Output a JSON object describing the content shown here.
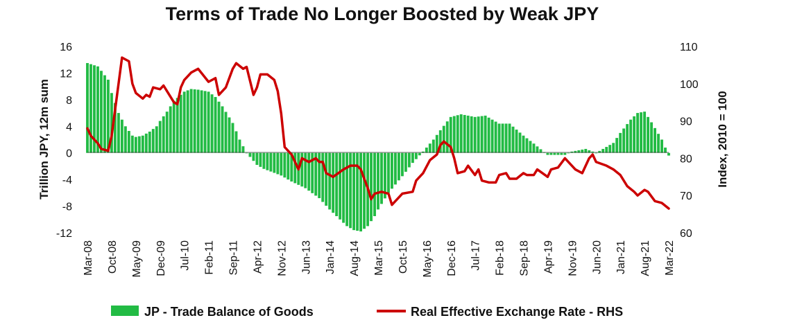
{
  "chart_data": {
    "type": "bar+line",
    "title": "Terms of Trade No Longer Boosted by Weak JPY",
    "ylabel_left": "Trillion JPY, 12m sum",
    "ylabel_right": "Index, 2010 = 100",
    "ylim_left": [
      -12,
      16
    ],
    "ylim_right": [
      60,
      110
    ],
    "yticks_left": [
      "16",
      "12",
      "8",
      "4",
      "0",
      "-4",
      "-8",
      "-12"
    ],
    "yticks_right": [
      "110",
      "100",
      "90",
      "80",
      "70",
      "60"
    ],
    "x_tick_labels": [
      "Mar-08",
      "Oct-08",
      "May-09",
      "Dec-09",
      "Jul-10",
      "Feb-11",
      "Sep-11",
      "Apr-12",
      "Nov-12",
      "Jun-13",
      "Jan-14",
      "Aug-14",
      "Mar-15",
      "Oct-15",
      "May-16",
      "Dec-16",
      "Jul-17",
      "Feb-18",
      "Sep-18",
      "Apr-19",
      "Nov-19",
      "Jun-20",
      "Jan-21",
      "Aug-21",
      "Mar-22"
    ],
    "x_start": "Mar-08",
    "x_end": "Mar-22",
    "grid": false,
    "legend_position": "bottom",
    "series": [
      {
        "name": "JP - Trade Balance of Goods",
        "type": "bar",
        "axis": "left",
        "color": "#22bb44",
        "points": [
          [
            "Mar-08",
            13.5
          ],
          [
            "Jun-08",
            13
          ],
          [
            "Sep-08",
            11
          ],
          [
            "Oct-08",
            9
          ],
          [
            "Dec-08",
            6
          ],
          [
            "Feb-09",
            4
          ],
          [
            "Apr-09",
            2.6
          ],
          [
            "May-09",
            2.4
          ],
          [
            "Jul-09",
            2.6
          ],
          [
            "Sep-09",
            3.2
          ],
          [
            "Nov-09",
            4
          ],
          [
            "Dec-09",
            4.8
          ],
          [
            "Feb-10",
            6.2
          ],
          [
            "Apr-10",
            7.8
          ],
          [
            "Jul-10",
            9.2
          ],
          [
            "Sep-10",
            9.6
          ],
          [
            "Nov-10",
            9.5
          ],
          [
            "Feb-11",
            9.2
          ],
          [
            "Apr-11",
            8.4
          ],
          [
            "Jun-11",
            7
          ],
          [
            "Sep-11",
            4.5
          ],
          [
            "Nov-11",
            2
          ],
          [
            "Jan-12",
            0
          ],
          [
            "Apr-12",
            -1.8
          ],
          [
            "Jun-12",
            -2.4
          ],
          [
            "Nov-12",
            -3.4
          ],
          [
            "Feb-13",
            -4.3
          ],
          [
            "Jun-13",
            -5.3
          ],
          [
            "Oct-13",
            -6.8
          ],
          [
            "Jan-14",
            -8.5
          ],
          [
            "Apr-14",
            -10
          ],
          [
            "Jun-14",
            -11
          ],
          [
            "Aug-14",
            -11.6
          ],
          [
            "Oct-14",
            -11.8
          ],
          [
            "Dec-14",
            -11
          ],
          [
            "Feb-15",
            -9.5
          ],
          [
            "Mar-15",
            -8.5
          ],
          [
            "Jun-15",
            -6
          ],
          [
            "Oct-15",
            -3.5
          ],
          [
            "Jan-16",
            -1.5
          ],
          [
            "Apr-16",
            0.2
          ],
          [
            "Jul-16",
            2
          ],
          [
            "Sep-16",
            3.4
          ],
          [
            "Dec-16",
            5.4
          ],
          [
            "Mar-17",
            5.8
          ],
          [
            "Jul-17",
            5.4
          ],
          [
            "Oct-17",
            5.6
          ],
          [
            "Feb-18",
            4.4
          ],
          [
            "May-18",
            4.4
          ],
          [
            "Sep-18",
            2.6
          ],
          [
            "Dec-18",
            1.4
          ],
          [
            "Apr-19",
            -0.3
          ],
          [
            "Sep-19",
            -0.3
          ],
          [
            "Nov-19",
            0.2
          ],
          [
            "Mar-20",
            0.6
          ],
          [
            "Jun-20",
            0
          ],
          [
            "Aug-20",
            0.6
          ],
          [
            "Nov-20",
            1.5
          ],
          [
            "Jan-21",
            3
          ],
          [
            "Apr-21",
            5
          ],
          [
            "Jun-21",
            6
          ],
          [
            "Aug-21",
            6.2
          ],
          [
            "Oct-21",
            4.6
          ],
          [
            "Jan-22",
            2
          ],
          [
            "Mar-22",
            -0.4
          ]
        ]
      },
      {
        "name": "Real Effective Exchange Rate - RHS",
        "type": "line",
        "axis": "right",
        "color": "#cc0000",
        "points": [
          [
            "Mar-08",
            88
          ],
          [
            "Apr-08",
            86
          ],
          [
            "Jun-08",
            84
          ],
          [
            "Jul-08",
            82.5
          ],
          [
            "Sep-08",
            82
          ],
          [
            "Oct-08",
            86
          ],
          [
            "Nov-08",
            93
          ],
          [
            "Dec-08",
            100
          ],
          [
            "Jan-09",
            107
          ],
          [
            "Mar-09",
            106
          ],
          [
            "Apr-09",
            100
          ],
          [
            "May-09",
            97.5
          ],
          [
            "Jul-09",
            96
          ],
          [
            "Aug-09",
            97
          ],
          [
            "Sep-09",
            96.5
          ],
          [
            "Oct-09",
            99
          ],
          [
            "Dec-09",
            98.5
          ],
          [
            "Jan-10",
            99.5
          ],
          [
            "Apr-10",
            95
          ],
          [
            "May-10",
            94.5
          ],
          [
            "Jun-10",
            99
          ],
          [
            "Jul-10",
            101
          ],
          [
            "Sep-10",
            103
          ],
          [
            "Nov-10",
            104
          ],
          [
            "Feb-11",
            100.5
          ],
          [
            "Apr-11",
            101.5
          ],
          [
            "May-11",
            97
          ],
          [
            "Jul-11",
            99
          ],
          [
            "Sep-11",
            104
          ],
          [
            "Oct-11",
            105.5
          ],
          [
            "Dec-11",
            104
          ],
          [
            "Jan-12",
            104.5
          ],
          [
            "Mar-12",
            97
          ],
          [
            "Apr-12",
            99
          ],
          [
            "May-12",
            102.5
          ],
          [
            "Jul-12",
            102.5
          ],
          [
            "Sep-12",
            101
          ],
          [
            "Oct-12",
            98
          ],
          [
            "Nov-12",
            92
          ],
          [
            "Dec-12",
            83
          ],
          [
            "Feb-13",
            81
          ],
          [
            "Apr-13",
            77
          ],
          [
            "May-13",
            80
          ],
          [
            "Jul-13",
            79
          ],
          [
            "Sep-13",
            80
          ],
          [
            "Oct-13",
            79
          ],
          [
            "Nov-13",
            79
          ],
          [
            "Dec-13",
            76
          ],
          [
            "Feb-14",
            75
          ],
          [
            "May-14",
            77
          ],
          [
            "Jul-14",
            78
          ],
          [
            "Sep-14",
            78
          ],
          [
            "Oct-14",
            77
          ],
          [
            "Dec-14",
            72
          ],
          [
            "Jan-15",
            69
          ],
          [
            "Feb-15",
            70.5
          ],
          [
            "Apr-15",
            71
          ],
          [
            "Jun-15",
            70.5
          ],
          [
            "Jul-15",
            67.5
          ],
          [
            "Sep-15",
            69.5
          ],
          [
            "Oct-15",
            70.5
          ],
          [
            "Jan-16",
            71
          ],
          [
            "Feb-16",
            74
          ],
          [
            "Apr-16",
            76
          ],
          [
            "Jun-16",
            79.5
          ],
          [
            "Aug-16",
            81
          ],
          [
            "Sep-16",
            83.5
          ],
          [
            "Oct-16",
            84.5
          ],
          [
            "Dec-16",
            83
          ],
          [
            "Jan-17",
            80
          ],
          [
            "Feb-17",
            76
          ],
          [
            "Apr-17",
            76.5
          ],
          [
            "May-17",
            78
          ],
          [
            "Jul-17",
            75.5
          ],
          [
            "Aug-17",
            77
          ],
          [
            "Sep-17",
            74
          ],
          [
            "Nov-17",
            73.5
          ],
          [
            "Jan-18",
            73.5
          ],
          [
            "Feb-18",
            75.5
          ],
          [
            "Apr-18",
            76
          ],
          [
            "May-18",
            74.5
          ],
          [
            "Jul-18",
            74.5
          ],
          [
            "Sep-18",
            76
          ],
          [
            "Oct-18",
            75.5
          ],
          [
            "Dec-18",
            75.5
          ],
          [
            "Jan-19",
            77
          ],
          [
            "Apr-19",
            75
          ],
          [
            "May-19",
            77
          ],
          [
            "Jul-19",
            77.5
          ],
          [
            "Sep-19",
            80
          ],
          [
            "Dec-19",
            77
          ],
          [
            "Feb-20",
            76
          ],
          [
            "Apr-20",
            80
          ],
          [
            "May-20",
            81
          ],
          [
            "Jun-20",
            79
          ],
          [
            "Sep-20",
            78
          ],
          [
            "Nov-20",
            77
          ],
          [
            "Jan-21",
            75.5
          ],
          [
            "Mar-21",
            72.5
          ],
          [
            "May-21",
            71
          ],
          [
            "Jun-21",
            70
          ],
          [
            "Aug-21",
            71.5
          ],
          [
            "Sep-21",
            71
          ],
          [
            "Nov-21",
            68.5
          ],
          [
            "Jan-22",
            68
          ],
          [
            "Mar-22",
            66.5
          ]
        ]
      }
    ]
  }
}
